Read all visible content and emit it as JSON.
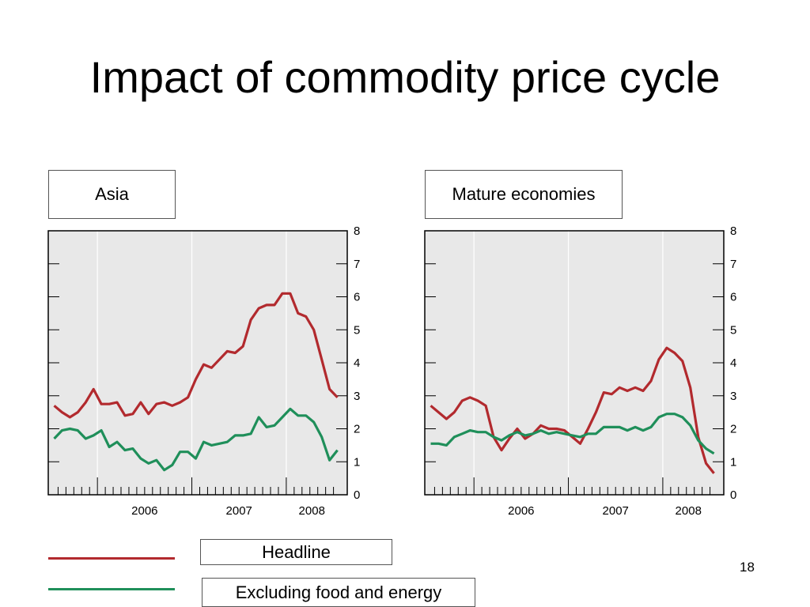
{
  "slide": {
    "title": "Impact of commodity price cycle",
    "page_number": "18"
  },
  "legend": {
    "headline_label": "Headline",
    "core_label": "Excluding food and energy"
  },
  "colors": {
    "headline": "#b22a2e",
    "core": "#1f8f5a",
    "plot_background": "#e8e8e8",
    "gridline": "#ffffff"
  },
  "chart_data": [
    {
      "type": "line",
      "panel_label": "Asia",
      "x_start": "2005-07",
      "x_period": "month",
      "xticklabels": [
        "2006",
        "2007",
        "2008"
      ],
      "ylim": [
        0,
        8
      ],
      "yticks": [
        0,
        1,
        2,
        3,
        4,
        5,
        6,
        7,
        8
      ],
      "y_axis_side": "right",
      "grid": true,
      "series": [
        {
          "key": "headline",
          "values": [
            2.7,
            2.5,
            2.35,
            2.5,
            2.8,
            3.2,
            2.75,
            2.75,
            2.8,
            2.4,
            2.45,
            2.8,
            2.45,
            2.75,
            2.8,
            2.7,
            2.8,
            2.95,
            3.5,
            3.95,
            3.85,
            4.1,
            4.35,
            4.3,
            4.5,
            5.3,
            5.65,
            5.75,
            5.75,
            6.1,
            6.1,
            5.5,
            5.4,
            5.0,
            4.1,
            3.2,
            2.95
          ]
        },
        {
          "key": "core",
          "values": [
            1.7,
            1.95,
            2.0,
            1.95,
            1.7,
            1.8,
            1.95,
            1.45,
            1.6,
            1.35,
            1.4,
            1.1,
            0.95,
            1.05,
            0.75,
            0.9,
            1.3,
            1.3,
            1.1,
            1.6,
            1.5,
            1.55,
            1.6,
            1.8,
            1.8,
            1.85,
            2.35,
            2.05,
            2.1,
            2.35,
            2.6,
            2.4,
            2.4,
            2.2,
            1.75,
            1.05,
            1.35
          ]
        }
      ]
    },
    {
      "type": "line",
      "panel_label": "Mature economies",
      "x_start": "2005-07",
      "x_period": "month",
      "xticklabels": [
        "2006",
        "2007",
        "2008"
      ],
      "ylim": [
        0,
        8
      ],
      "yticks": [
        0,
        1,
        2,
        3,
        4,
        5,
        6,
        7,
        8
      ],
      "y_axis_side": "right",
      "grid": true,
      "series": [
        {
          "key": "headline",
          "values": [
            2.7,
            2.5,
            2.3,
            2.5,
            2.85,
            2.95,
            2.85,
            2.7,
            1.75,
            1.35,
            1.7,
            2.0,
            1.7,
            1.85,
            2.1,
            2.0,
            2.0,
            1.95,
            1.75,
            1.55,
            2.0,
            2.5,
            3.1,
            3.05,
            3.25,
            3.15,
            3.25,
            3.15,
            3.45,
            4.1,
            4.45,
            4.3,
            4.05,
            3.25,
            1.75,
            0.95,
            0.65
          ]
        },
        {
          "key": "core",
          "values": [
            1.55,
            1.55,
            1.5,
            1.75,
            1.85,
            1.95,
            1.9,
            1.9,
            1.75,
            1.65,
            1.8,
            1.9,
            1.8,
            1.85,
            1.95,
            1.85,
            1.9,
            1.85,
            1.8,
            1.75,
            1.85,
            1.85,
            2.05,
            2.05,
            2.05,
            1.95,
            2.05,
            1.95,
            2.05,
            2.35,
            2.45,
            2.45,
            2.35,
            2.1,
            1.65,
            1.4,
            1.25
          ]
        }
      ]
    }
  ]
}
